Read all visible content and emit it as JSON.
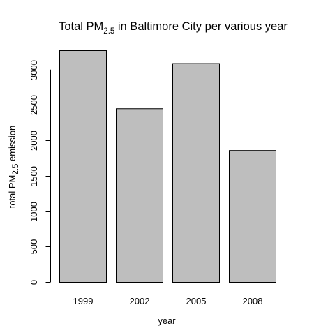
{
  "chart_data": {
    "type": "bar",
    "title": {
      "prefix": "Total PM",
      "subscript": "2.5",
      "suffix": " in Baltimore City per various year"
    },
    "xlabel": "year",
    "ylabel": {
      "prefix": "total PM",
      "subscript": "2.5",
      "suffix": " emission"
    },
    "categories": [
      "1999",
      "2002",
      "2005",
      "2008"
    ],
    "values": [
      3274,
      2453,
      3091,
      1862
    ],
    "ylim": [
      0,
      3274
    ],
    "yticks": [
      0,
      500,
      1000,
      1500,
      2000,
      2500,
      3000
    ],
    "bar_fill": "#bebebe",
    "bar_stroke": "#000000",
    "grid": false,
    "legend": "none"
  }
}
